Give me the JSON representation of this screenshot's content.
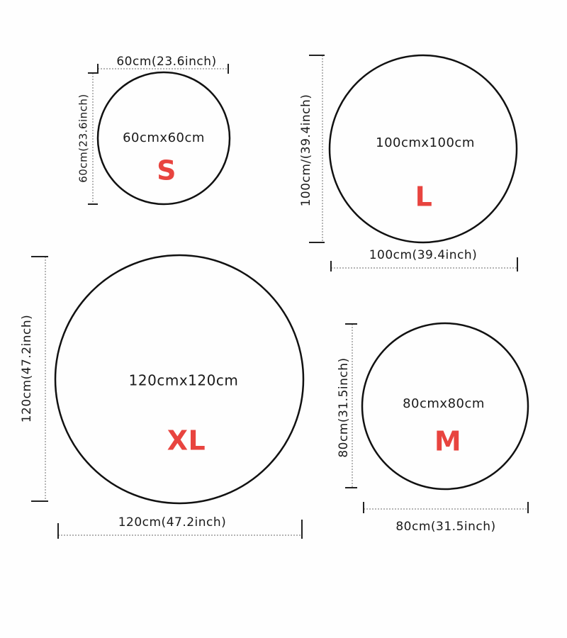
{
  "sizes": [
    {
      "area": "60cmx60cm",
      "size": "S",
      "width": "60cm(23.6inch)",
      "height": "60cm(23.6inch)"
    },
    {
      "area": "100cmx100cm",
      "size": "L",
      "width": "100cm(39.4inch)",
      "height": "100cm/(39.4inch)"
    },
    {
      "area": "120cmx120cm",
      "size": "XL",
      "width": "120cm(47.2inch)",
      "height": "120cm(47.2inch)"
    },
    {
      "area": "80cmx80cm",
      "size": "M",
      "width": "80cm(31.5inch)",
      "height": "80cm(31.5inch)"
    }
  ]
}
